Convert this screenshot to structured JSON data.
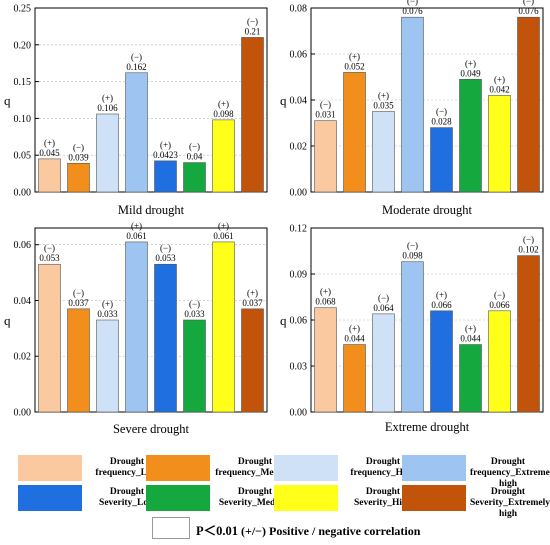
{
  "chart_data": [
    {
      "type": "bar",
      "title": "Mild drought",
      "ylabel": "q",
      "ylim": [
        0,
        0.25
      ],
      "yticks": [
        "0.00",
        "0.05",
        "0.10",
        "0.15",
        "0.20",
        "0.25"
      ],
      "ytick_values": [
        0,
        0.05,
        0.1,
        0.15,
        0.2,
        0.25
      ],
      "values": [
        0.045,
        0.039,
        0.106,
        0.162,
        0.0423,
        0.04,
        0.098,
        0.21
      ],
      "value_labels": [
        "0.045",
        "0.039",
        "0.106",
        "0.162",
        "0.0423",
        "0.04",
        "0.098",
        "0.21"
      ],
      "signs": [
        "(+)",
        "(−)",
        "(+)",
        "(−)",
        "(+)",
        "(−)",
        "(+)",
        "(−)"
      ]
    },
    {
      "type": "bar",
      "title": "Moderate drought",
      "ylabel": "q",
      "ylim": [
        0,
        0.08
      ],
      "yticks": [
        "0.00",
        "0.02",
        "0.04",
        "0.06",
        "0.08"
      ],
      "ytick_values": [
        0,
        0.02,
        0.04,
        0.06,
        0.08
      ],
      "values": [
        0.031,
        0.052,
        0.035,
        0.076,
        0.028,
        0.049,
        0.042,
        0.076
      ],
      "value_labels": [
        "0.031",
        "0.052",
        "0.035",
        "0.076",
        "0.028",
        "0.049",
        "0.042",
        "0.076"
      ],
      "signs": [
        "(−)",
        "(+)",
        "(+)",
        "(−)",
        "(−)",
        "(+)",
        "(+)",
        "(−)"
      ]
    },
    {
      "type": "bar",
      "title": "Severe drought",
      "ylabel": "q",
      "ylim": [
        0,
        0.066
      ],
      "yticks": [
        "0.00",
        "0.02",
        "0.04",
        "0.06"
      ],
      "ytick_values": [
        0,
        0.02,
        0.04,
        0.06
      ],
      "values": [
        0.053,
        0.037,
        0.033,
        0.061,
        0.053,
        0.033,
        0.061,
        0.037
      ],
      "value_labels": [
        "0.053",
        "0.037",
        "0.033",
        "0.061",
        "0.053",
        "0.033",
        "0.061",
        "0.037"
      ],
      "signs": [
        "(−)",
        "(−)",
        "(+)",
        "(+)",
        "(−)",
        "(−)",
        "(+)",
        "(+)"
      ]
    },
    {
      "type": "bar",
      "title": "Extreme drought",
      "ylabel": "q",
      "ylim": [
        0,
        0.12
      ],
      "yticks": [
        "0.00",
        "0.03",
        "0.06",
        "0.09",
        "0.12"
      ],
      "ytick_values": [
        0,
        0.03,
        0.06,
        0.09,
        0.12
      ],
      "values": [
        0.068,
        0.044,
        0.064,
        0.098,
        0.066,
        0.044,
        0.066,
        0.102
      ],
      "value_labels": [
        "0.068",
        "0.044",
        "0.064",
        "0.098",
        "0.066",
        "0.044",
        "0.066",
        "0.102"
      ],
      "signs": [
        "(+)",
        "(+)",
        "(−)",
        "(−)",
        "(+)",
        "(+)",
        "(−)",
        "(−)"
      ]
    }
  ],
  "series_colors": [
    "#fac9a0",
    "#f28e1c",
    "#cfe1f7",
    "#9ec5f2",
    "#1f6fe0",
    "#14a83f",
    "#ffff1a",
    "#c2530a"
  ],
  "legend": [
    {
      "line1": "Drought",
      "line2": "frequency_Low",
      "color": "#fac9a0"
    },
    {
      "line1": "Drought",
      "line2": "frequency_Medium",
      "color": "#f28e1c"
    },
    {
      "line1": "Drought",
      "line2": "frequency_High",
      "color": "#cfe1f7"
    },
    {
      "line1": "Drought",
      "line2": "frequency_Extremely high",
      "color": "#9ec5f2"
    },
    {
      "line1": "Drought",
      "line2": "Severity_Low",
      "color": "#1f6fe0"
    },
    {
      "line1": "Drought",
      "line2": "Severity_Medium",
      "color": "#14a83f"
    },
    {
      "line1": "Drought",
      "line2": "Severity_High",
      "color": "#ffff1a"
    },
    {
      "line1": "Drought",
      "line2": "Severity_Extremely high",
      "color": "#c2530a"
    }
  ],
  "note": {
    "significance": "P＜0.01",
    "sign_key": "(+/−) Positive / negative correlation"
  }
}
